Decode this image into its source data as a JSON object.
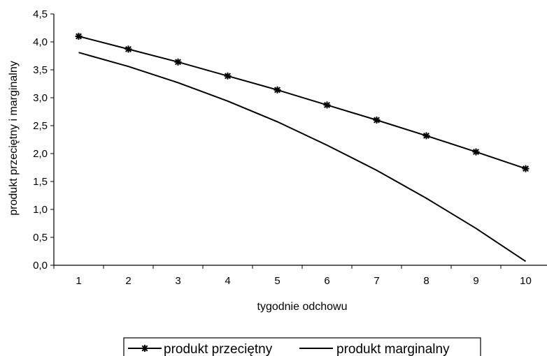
{
  "chart_data": {
    "type": "line",
    "title": "",
    "xlabel": "tygodnie odchowu",
    "ylabel": "produkt przeciętny i marginalny",
    "categories": [
      "1",
      "2",
      "3",
      "4",
      "5",
      "6",
      "7",
      "8",
      "9",
      "10"
    ],
    "x": [
      1,
      2,
      3,
      4,
      5,
      6,
      7,
      8,
      9,
      10
    ],
    "ylim": [
      0,
      4.5
    ],
    "yticks": [
      "0,0",
      "0,5",
      "1,0",
      "1,5",
      "2,0",
      "2,5",
      "3,0",
      "3,5",
      "4,0",
      "4,5"
    ],
    "grid": false,
    "legend_position": "bottom",
    "series": [
      {
        "name": "produkt przeciętny",
        "marker": "asterisk",
        "color": "#000000",
        "values": [
          4.1,
          3.87,
          3.64,
          3.39,
          3.14,
          2.87,
          2.6,
          2.32,
          2.03,
          1.73
        ]
      },
      {
        "name": "produkt marginalny",
        "marker": "none",
        "color": "#000000",
        "values": [
          3.81,
          3.56,
          3.27,
          2.94,
          2.57,
          2.15,
          1.7,
          1.2,
          0.66,
          0.07
        ]
      }
    ]
  }
}
